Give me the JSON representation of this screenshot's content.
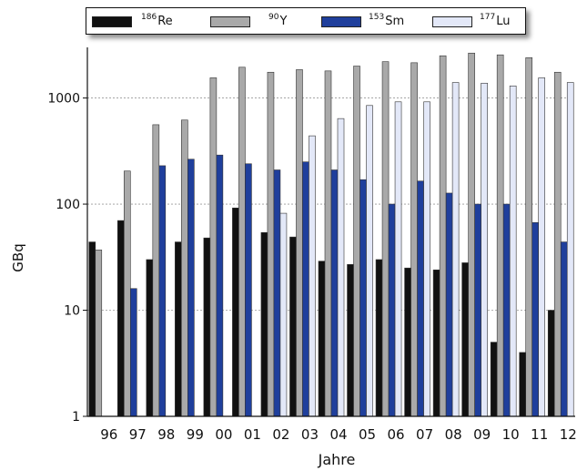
{
  "chart_data": {
    "type": "bar",
    "xlabel": "Jahre",
    "ylabel": "GBq",
    "yscale": "log",
    "ylim": [
      1,
      3000
    ],
    "yticks": [
      1,
      10,
      100,
      1000
    ],
    "grid": "horizontal dashed",
    "legend_position": "top",
    "categories": [
      "96",
      "97",
      "98",
      "99",
      "00",
      "01",
      "02",
      "03",
      "04",
      "05",
      "06",
      "07",
      "08",
      "09",
      "10",
      "11",
      "12"
    ],
    "series": [
      {
        "name": "186Re",
        "mass": "186",
        "element": "Re",
        "color": "#111111",
        "values": [
          44,
          70,
          30,
          44,
          48,
          92,
          54,
          49,
          29,
          27,
          30,
          25,
          24,
          28,
          5,
          4,
          10
        ]
      },
      {
        "name": "90Y",
        "mass": "90",
        "element": "Y",
        "color": "#a9a9a9",
        "values": [
          37,
          205,
          560,
          620,
          1550,
          1950,
          1750,
          1850,
          1800,
          2000,
          2200,
          2150,
          2500,
          2650,
          2550,
          2400,
          1750
        ]
      },
      {
        "name": "153Sm",
        "mass": "153",
        "element": "Sm",
        "color": "#1f3f9c",
        "values": [
          null,
          16,
          230,
          265,
          290,
          240,
          210,
          250,
          210,
          170,
          100,
          165,
          127,
          100,
          100,
          67,
          44
        ]
      },
      {
        "name": "177Lu",
        "mass": "177",
        "element": "Lu",
        "color": "#e3e8f8",
        "values": [
          null,
          null,
          null,
          null,
          null,
          null,
          82,
          440,
          640,
          850,
          920,
          920,
          1400,
          1380,
          1300,
          1550,
          1400
        ]
      }
    ]
  }
}
